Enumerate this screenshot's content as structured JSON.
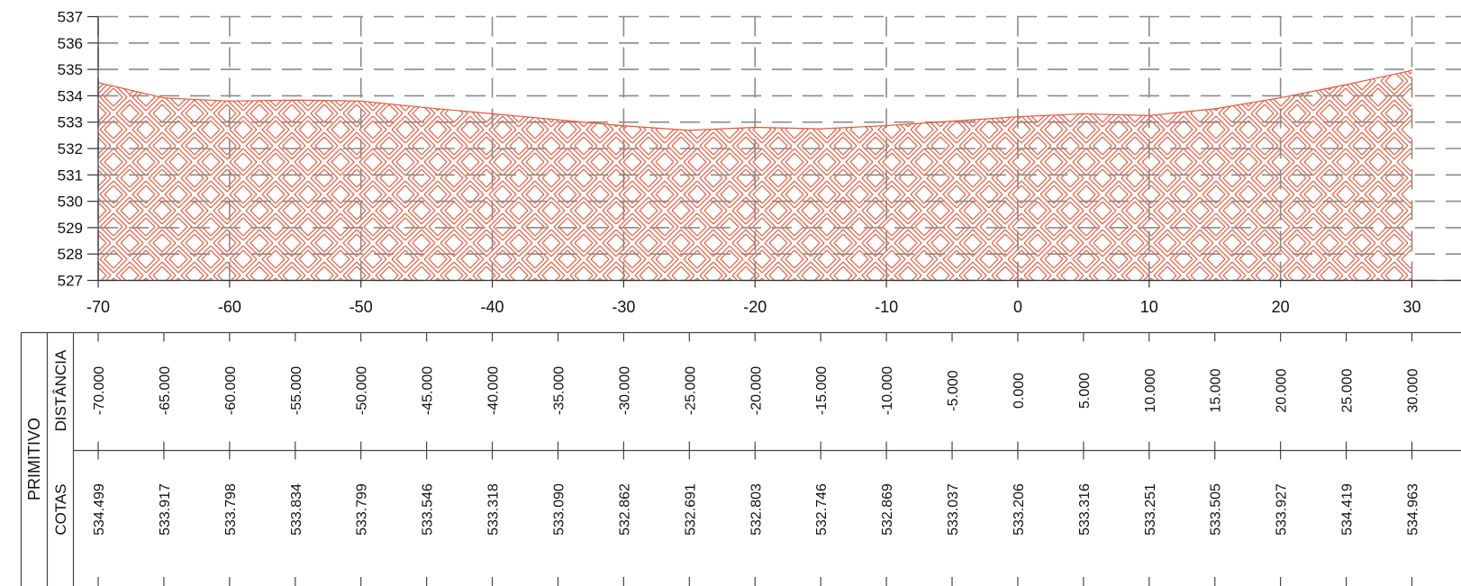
{
  "chart_data": {
    "type": "area",
    "title": "",
    "xlabel": "",
    "ylabel": "",
    "xlim": [
      -70,
      30
    ],
    "ylim": [
      527,
      537
    ],
    "x_ticks": [
      "-70",
      "-60",
      "-50",
      "-40",
      "-30",
      "-20",
      "-10",
      "0",
      "10",
      "20",
      "30"
    ],
    "y_ticks": [
      "527",
      "528",
      "529",
      "530",
      "531",
      "532",
      "533",
      "534",
      "535",
      "536",
      "537"
    ],
    "grid": true,
    "grid_style": "dashed",
    "fill_color": "#e8573a",
    "line_color": "#e8573a",
    "hatch": "basket-weave",
    "series": [
      {
        "x": [
          -70,
          -65,
          -60,
          -55,
          -50,
          -45,
          -40,
          -35,
          -30,
          -25,
          -20,
          -15,
          -10,
          -5,
          0,
          5,
          10,
          15,
          20,
          25,
          30
        ],
        "values": [
          534.499,
          533.917,
          533.798,
          533.834,
          533.799,
          533.546,
          533.318,
          533.09,
          532.862,
          532.691,
          532.803,
          532.746,
          532.869,
          533.037,
          533.206,
          533.316,
          533.251,
          533.505,
          533.927,
          534.419,
          534.963
        ]
      }
    ]
  },
  "table": {
    "group_label": "PRIMITIVO",
    "rows": [
      {
        "label": "DISTÂNCIA",
        "values": [
          "-70.000",
          "-65.000",
          "-60.000",
          "-55.000",
          "-50.000",
          "-45.000",
          "-40.000",
          "-35.000",
          "-30.000",
          "-25.000",
          "-20.000",
          "-15.000",
          "-10.000",
          "-5.000",
          "0.000",
          "5.000",
          "10.000",
          "15.000",
          "20.000",
          "25.000",
          "30.000"
        ]
      },
      {
        "label": "COTAS",
        "values": [
          "534.499",
          "533.917",
          "533.798",
          "533.834",
          "533.799",
          "533.546",
          "533.318",
          "533.090",
          "532.862",
          "532.691",
          "532.803",
          "532.746",
          "532.869",
          "533.037",
          "533.206",
          "533.316",
          "533.251",
          "533.505",
          "533.927",
          "534.419",
          "534.963"
        ]
      }
    ]
  }
}
